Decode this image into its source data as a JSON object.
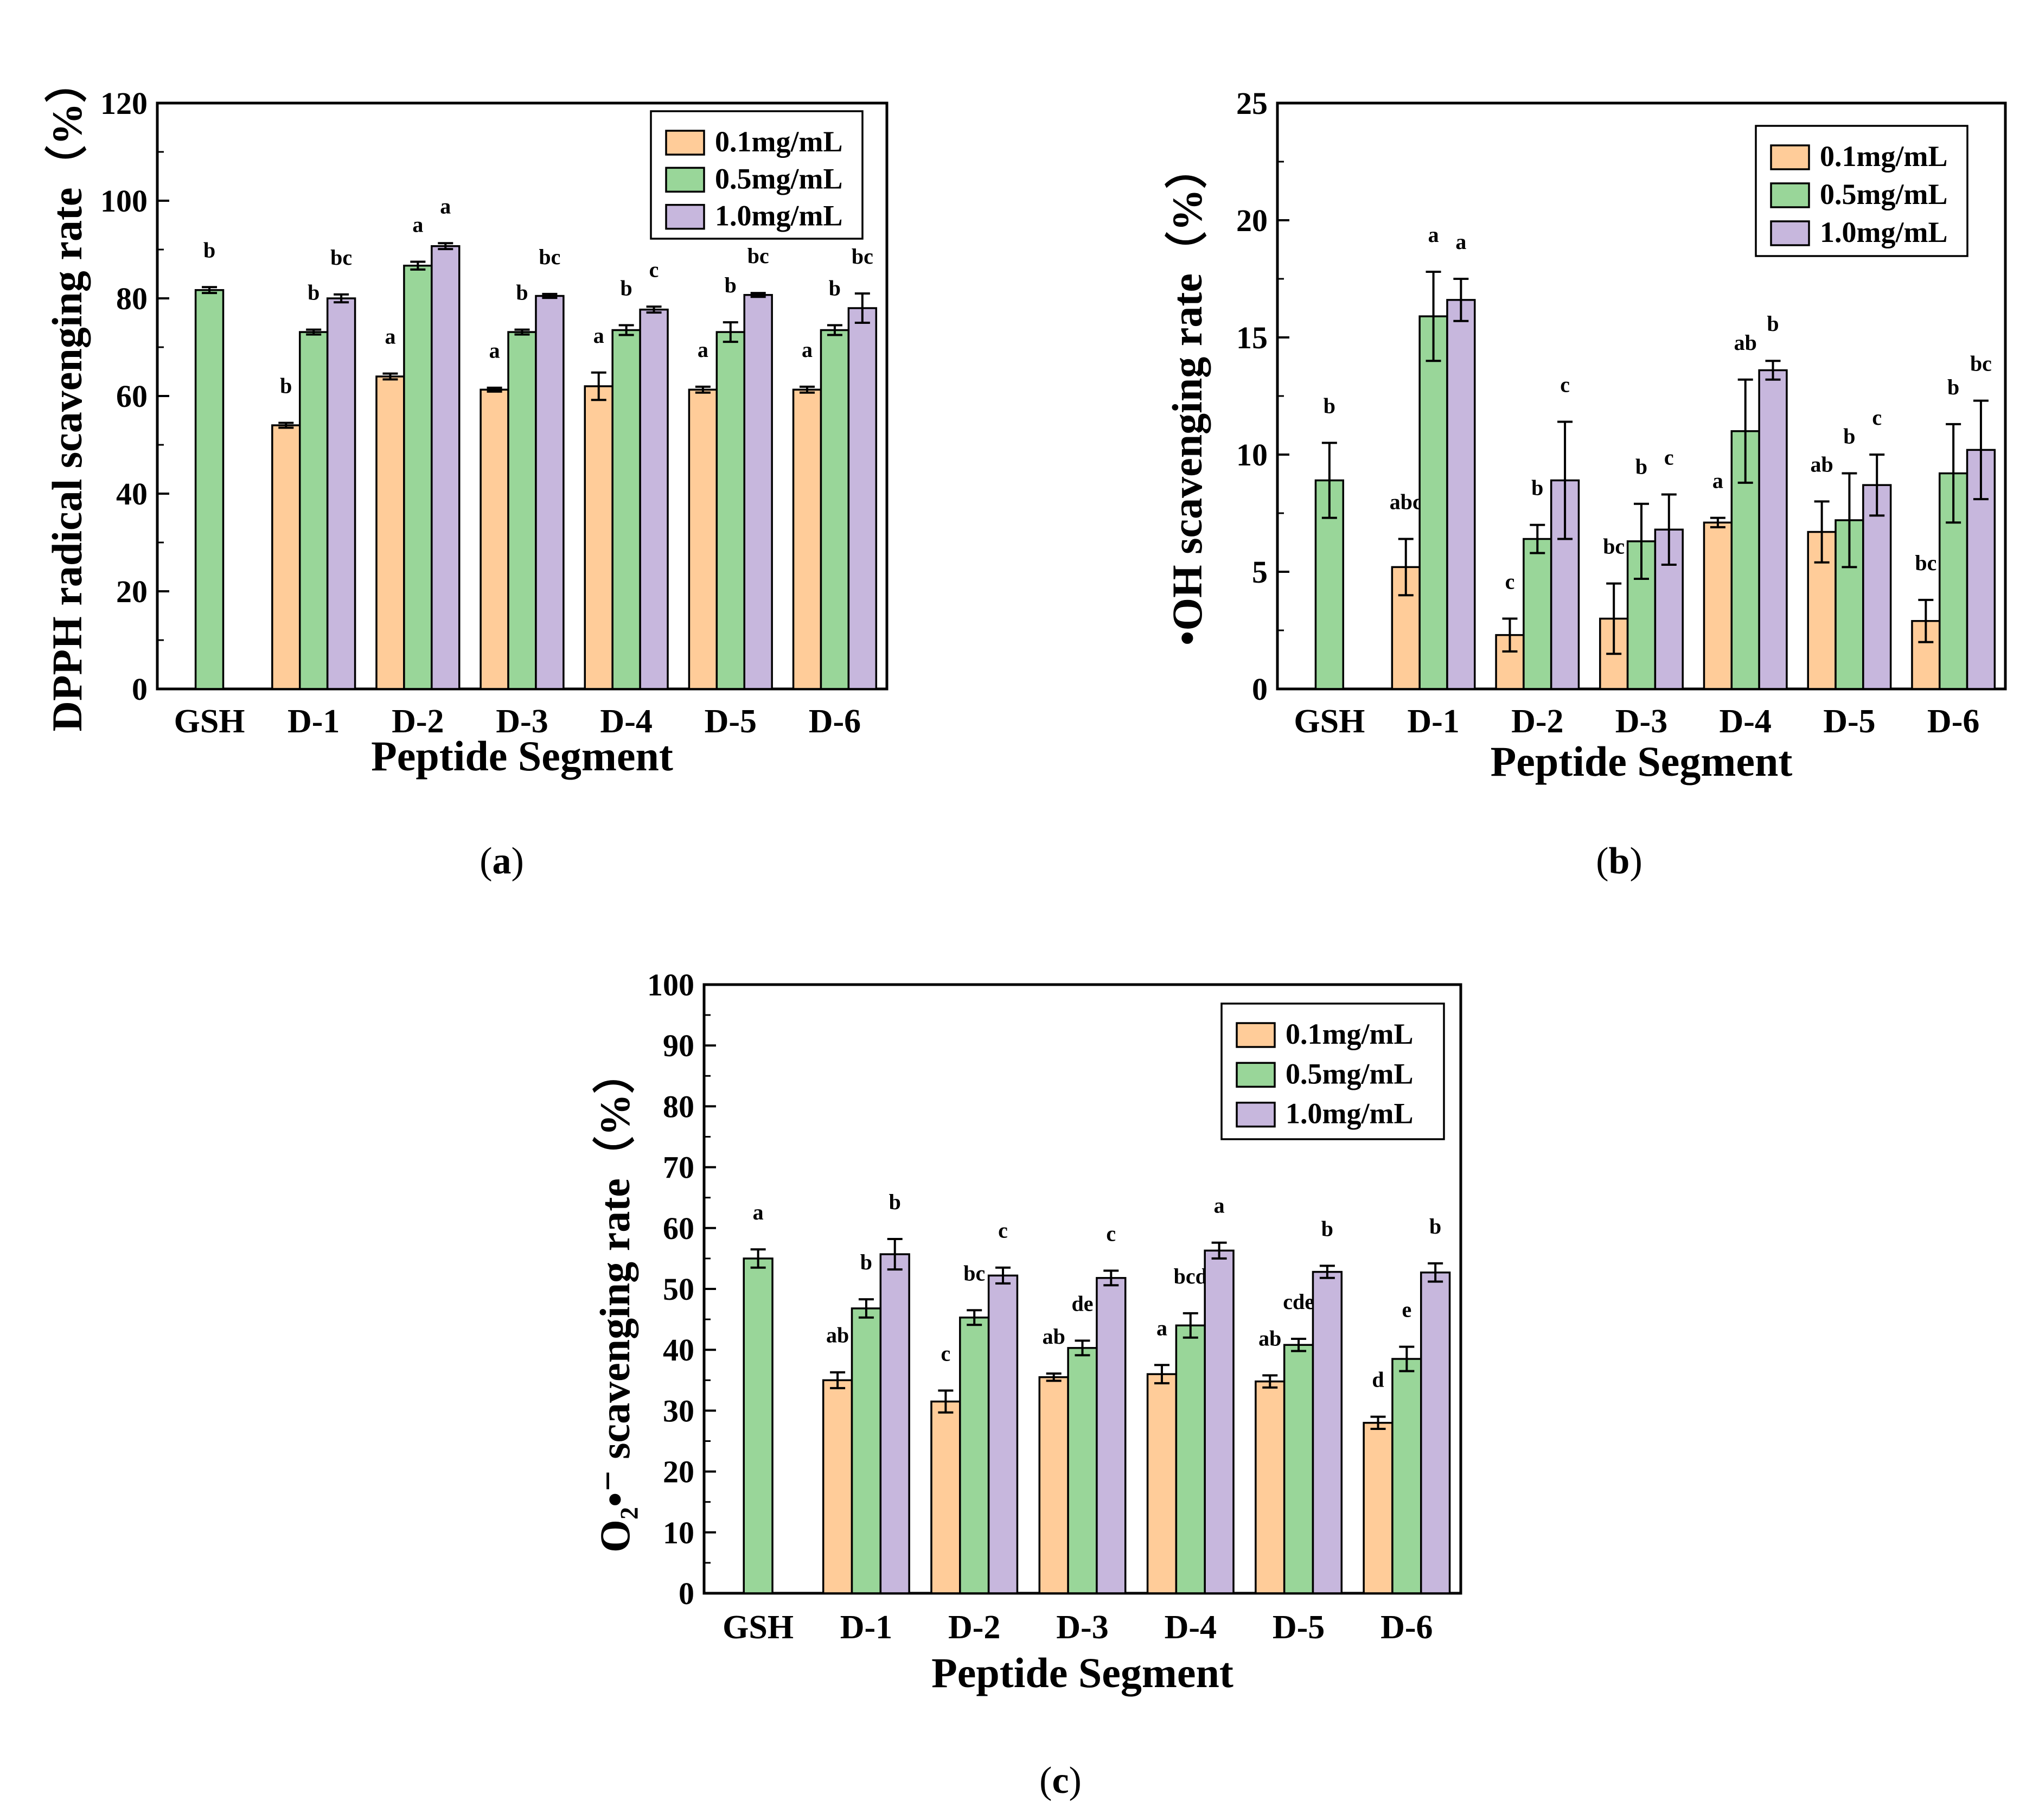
{
  "chart_data": [
    {
      "type": "bar",
      "panel": "(a)",
      "caption": {
        "open": "(",
        "letter": "a",
        "close": ")"
      },
      "ylabel": "DPPH radical scavenging rate（%）",
      "xlabel": "Peptide Segment",
      "ylim": [
        0,
        120
      ],
      "yticks": [
        0,
        20,
        40,
        60,
        80,
        100,
        120
      ],
      "categories": [
        "GSH",
        "D-1",
        "D-2",
        "D-3",
        "D-4",
        "D-5",
        "D-6"
      ],
      "legend_position": "top-right",
      "series": [
        {
          "name": "0.1mg/mL",
          "color": "#FFCC99",
          "values": [
            null,
            54,
            64,
            61.3,
            62,
            61.3,
            61.3
          ],
          "errors": [
            null,
            0.5,
            0.6,
            0.4,
            2.8,
            0.6,
            0.6
          ],
          "letters": [
            null,
            "b",
            "a",
            "a",
            "a",
            "a",
            "a"
          ]
        },
        {
          "name": "0.5mg/mL",
          "color": "#99D699",
          "values": [
            81.7,
            73.1,
            86.7,
            73.1,
            73.5,
            73.1,
            73.5
          ],
          "errors": [
            0.6,
            0.5,
            0.8,
            0.5,
            1.0,
            2.0,
            1.0
          ],
          "letters": [
            "b",
            "b",
            "a",
            "b",
            "b",
            "b",
            "b"
          ]
        },
        {
          "name": "1.0mg/mL",
          "color": "#C7B7DD",
          "values": [
            null,
            80,
            90.7,
            80.5,
            77.7,
            80.7,
            78
          ],
          "errors": [
            null,
            0.8,
            0.6,
            0.4,
            0.6,
            0.4,
            3.0
          ],
          "letters": [
            null,
            "bc",
            "a",
            "bc",
            "c",
            "bc",
            "bc"
          ]
        }
      ]
    },
    {
      "type": "bar",
      "panel": "(b)",
      "caption": {
        "open": "(",
        "letter": "b",
        "close": ")"
      },
      "ylabel": "•OH  scavenging rate（%）",
      "xlabel": "Peptide Segment",
      "ylim": [
        0,
        25
      ],
      "yticks": [
        0,
        5,
        10,
        15,
        20,
        25
      ],
      "categories": [
        "GSH",
        "D-1",
        "D-2",
        "D-3",
        "D-4",
        "D-5",
        "D-6"
      ],
      "legend_position": "top-right",
      "series": [
        {
          "name": "0.1mg/mL",
          "color": "#FFCC99",
          "values": [
            null,
            5.2,
            2.3,
            3.0,
            7.1,
            6.7,
            2.9
          ],
          "errors": [
            null,
            1.2,
            0.7,
            1.5,
            0.2,
            1.3,
            0.9
          ],
          "letters": [
            null,
            "abc",
            "c",
            "bc",
            "a",
            "ab",
            "bc"
          ]
        },
        {
          "name": "0.5mg/mL",
          "color": "#99D699",
          "values": [
            8.9,
            15.9,
            6.4,
            6.3,
            11.0,
            7.2,
            9.2
          ],
          "errors": [
            1.6,
            1.9,
            0.6,
            1.6,
            2.2,
            2.0,
            2.1
          ],
          "letters": [
            "b",
            "a",
            "b",
            "b",
            "ab",
            "b",
            "b"
          ]
        },
        {
          "name": "1.0mg/mL",
          "color": "#C7B7DD",
          "values": [
            null,
            16.6,
            8.9,
            6.8,
            13.6,
            8.7,
            10.2
          ],
          "errors": [
            null,
            0.9,
            2.5,
            1.5,
            0.4,
            1.3,
            2.1
          ],
          "letters": [
            null,
            "a",
            "c",
            "c",
            "b",
            "c",
            "bc"
          ]
        }
      ]
    },
    {
      "type": "bar",
      "panel": "(c)",
      "caption": {
        "open": "(",
        "letter": "c",
        "close": ")"
      },
      "ylabel": "O₂•⁻ scavenging rate（%）",
      "xlabel": "Peptide Segment",
      "ylim": [
        0,
        100
      ],
      "yticks": [
        0,
        10,
        20,
        30,
        40,
        50,
        60,
        70,
        80,
        90,
        100
      ],
      "categories": [
        "GSH",
        "D-1",
        "D-2",
        "D-3",
        "D-4",
        "D-5",
        "D-6"
      ],
      "legend_position": "top-right",
      "series": [
        {
          "name": "0.1mg/mL",
          "color": "#FFCC99",
          "values": [
            null,
            35,
            31.5,
            35.5,
            36,
            34.8,
            28
          ],
          "errors": [
            null,
            1.3,
            1.8,
            0.6,
            1.5,
            1.0,
            1.0
          ],
          "letters": [
            null,
            "ab",
            "c",
            "ab",
            "a",
            "ab",
            "d"
          ]
        },
        {
          "name": "0.5mg/mL",
          "color": "#99D699",
          "values": [
            55,
            46.8,
            45.3,
            40.3,
            44,
            40.8,
            38.5
          ],
          "errors": [
            1.5,
            1.5,
            1.2,
            1.2,
            2.0,
            1.0,
            2.0
          ],
          "letters": [
            "a",
            "b",
            "bc",
            "de",
            "bcd",
            "cde",
            "e"
          ]
        },
        {
          "name": "1.0mg/mL",
          "color": "#C7B7DD",
          "values": [
            null,
            55.7,
            52.2,
            51.8,
            56.3,
            52.8,
            52.7
          ],
          "errors": [
            null,
            2.5,
            1.3,
            1.2,
            1.3,
            1.0,
            1.5
          ],
          "letters": [
            null,
            "b",
            "c",
            "c",
            "a",
            "b",
            "b"
          ]
        }
      ]
    }
  ]
}
